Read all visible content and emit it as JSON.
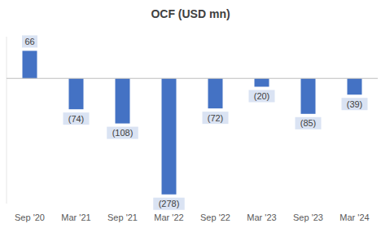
{
  "chart_data": {
    "type": "bar",
    "title": "OCF (USD mn)",
    "categories": [
      "Sep '20",
      "Mar '21",
      "Sep '21",
      "Mar '22",
      "Sep '22",
      "Mar '23",
      "Sep '23",
      "Mar '24"
    ],
    "values": [
      66,
      -74,
      -108,
      -278,
      -72,
      -20,
      -85,
      -39
    ],
    "value_labels": [
      "66",
      "(74)",
      "(108)",
      "(278)",
      "(72)",
      "(20)",
      "(85)",
      "(39)"
    ],
    "color": "#4472c4",
    "ylim": [
      -300,
      100
    ],
    "yticks": [
      0
    ],
    "grid": false,
    "data_labels": true,
    "tick_labels": "x"
  }
}
